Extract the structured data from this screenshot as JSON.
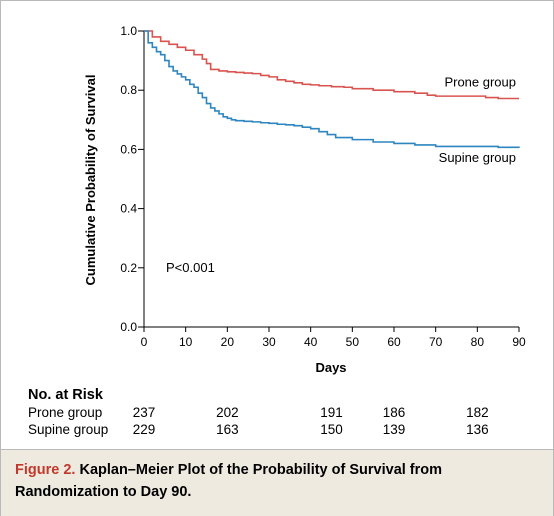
{
  "chart_data": {
    "type": "line",
    "chart_kind": "kaplan-meier step plot",
    "title": "",
    "xlabel": "Days",
    "ylabel": "Cumulative Probability of Survival",
    "xlim": [
      0,
      90
    ],
    "ylim": [
      0,
      1.0
    ],
    "x_ticks": [
      "0",
      "10",
      "20",
      "30",
      "40",
      "50",
      "60",
      "70",
      "80",
      "90"
    ],
    "y_ticks": [
      "0.0",
      "0.2",
      "0.4",
      "0.6",
      "0.8",
      "1.0"
    ],
    "grid": false,
    "legend": "inline labels at right end of curves",
    "annotation": "P<0.001",
    "series": [
      {
        "name": "Prone group",
        "color": "#d9534f",
        "x": [
          0,
          2,
          4,
          6,
          8,
          10,
          12,
          14,
          15,
          16,
          18,
          20,
          22,
          24,
          26,
          28,
          30,
          32,
          34,
          36,
          38,
          40,
          42,
          45,
          48,
          50,
          55,
          60,
          65,
          68,
          70,
          75,
          80,
          82,
          85,
          90
        ],
        "y": [
          1.0,
          0.98,
          0.965,
          0.955,
          0.945,
          0.935,
          0.92,
          0.905,
          0.89,
          0.87,
          0.865,
          0.862,
          0.86,
          0.858,
          0.856,
          0.85,
          0.845,
          0.835,
          0.83,
          0.825,
          0.82,
          0.818,
          0.815,
          0.812,
          0.81,
          0.805,
          0.8,
          0.795,
          0.79,
          0.783,
          0.78,
          0.78,
          0.78,
          0.775,
          0.772,
          0.772
        ]
      },
      {
        "name": "Supine group",
        "color": "#2e86c1",
        "x": [
          0,
          1,
          2,
          3,
          4,
          5,
          6,
          7,
          8,
          9,
          10,
          11,
          12,
          13,
          14,
          15,
          16,
          17,
          18,
          19,
          20,
          21,
          22,
          24,
          26,
          28,
          30,
          32,
          34,
          36,
          38,
          40,
          42,
          44,
          46,
          50,
          55,
          60,
          65,
          70,
          80,
          85,
          90
        ],
        "y": [
          1.0,
          0.96,
          0.945,
          0.93,
          0.92,
          0.9,
          0.88,
          0.865,
          0.855,
          0.845,
          0.835,
          0.82,
          0.81,
          0.79,
          0.775,
          0.755,
          0.74,
          0.73,
          0.72,
          0.71,
          0.705,
          0.7,
          0.697,
          0.695,
          0.693,
          0.69,
          0.688,
          0.685,
          0.683,
          0.68,
          0.675,
          0.67,
          0.66,
          0.65,
          0.64,
          0.633,
          0.625,
          0.62,
          0.615,
          0.61,
          0.61,
          0.607,
          0.605
        ]
      }
    ]
  },
  "risk_table": {
    "title": "No. at Risk",
    "rows": [
      {
        "label": "Prone group",
        "values": [
          "237",
          "202",
          "191",
          "186",
          "182"
        ]
      },
      {
        "label": "Supine group",
        "values": [
          "229",
          "163",
          "150",
          "139",
          "136"
        ]
      }
    ],
    "days": [
      0,
      20,
      45,
      60,
      80
    ]
  },
  "caption": {
    "figure_label": "Figure 2.",
    "text": "Kaplan–Meier Plot of the Probability of Survival from Randomization to Day 90."
  }
}
